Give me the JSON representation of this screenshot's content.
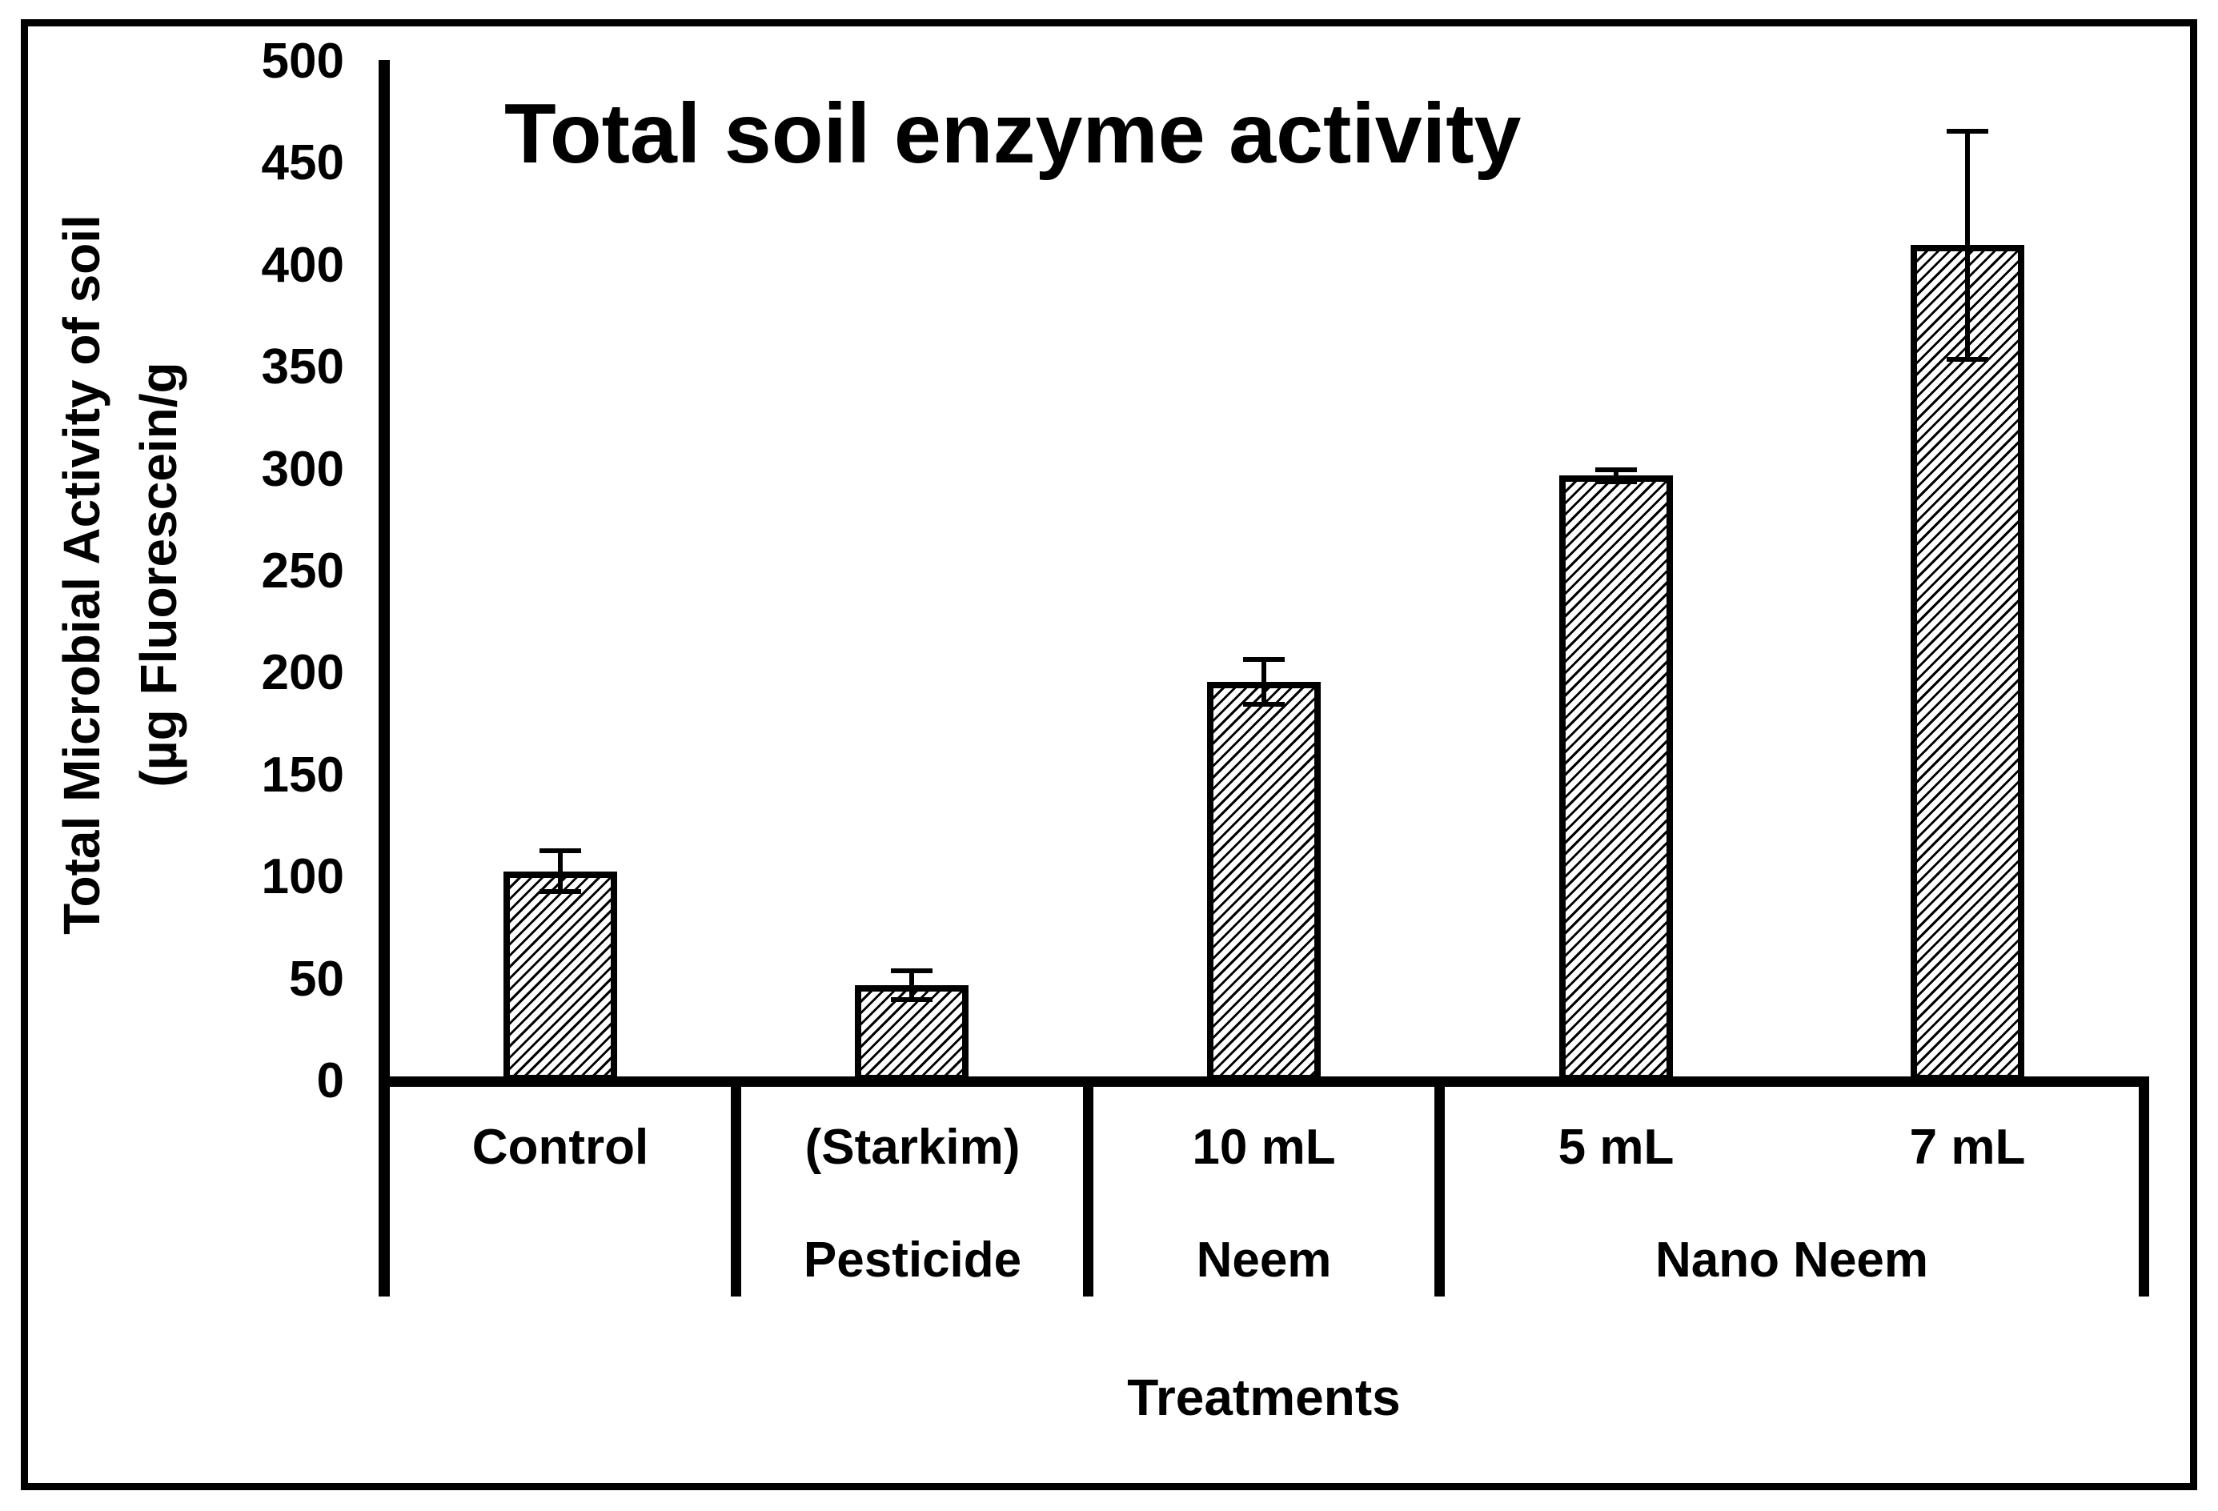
{
  "chart_data": {
    "type": "bar",
    "title": "Total soil enzyme activity",
    "xlabel": "Treatments",
    "ylabel_lines": [
      "Total Microbial Activity of soil",
      "(µg Fluorescein/g"
    ],
    "ylim": [
      0,
      500
    ],
    "ytick_step": 50,
    "yticks": [
      500,
      450,
      400,
      350,
      300,
      250,
      200,
      150,
      100,
      50,
      0
    ],
    "grid": false,
    "legend": "none",
    "bar_style": "white fill with black diagonal hatch, black outline, black error bars",
    "bars": [
      {
        "label": "Control",
        "group": "",
        "value": 103,
        "error": 10
      },
      {
        "label": "(Starkim)",
        "group": "Pesticide",
        "value": 47,
        "error": 7
      },
      {
        "label": "10 mL",
        "group": "Neem",
        "value": 196,
        "error": 11
      },
      {
        "label": "5 mL",
        "group": "Nano Neem",
        "value": 297,
        "error": 3
      },
      {
        "label": "7 mL",
        "group": "Nano Neem",
        "value": 410,
        "error": 56
      }
    ],
    "groups": [
      {
        "label": "",
        "span": 1
      },
      {
        "label": "Pesticide",
        "span": 1
      },
      {
        "label": "Neem",
        "span": 1
      },
      {
        "label": "Nano Neem",
        "span": 2
      }
    ],
    "colors": {
      "background": "#ffffff",
      "text": "#000000",
      "axis": "#000000",
      "bar_outline": "#000000",
      "hatch": "#000000"
    }
  }
}
